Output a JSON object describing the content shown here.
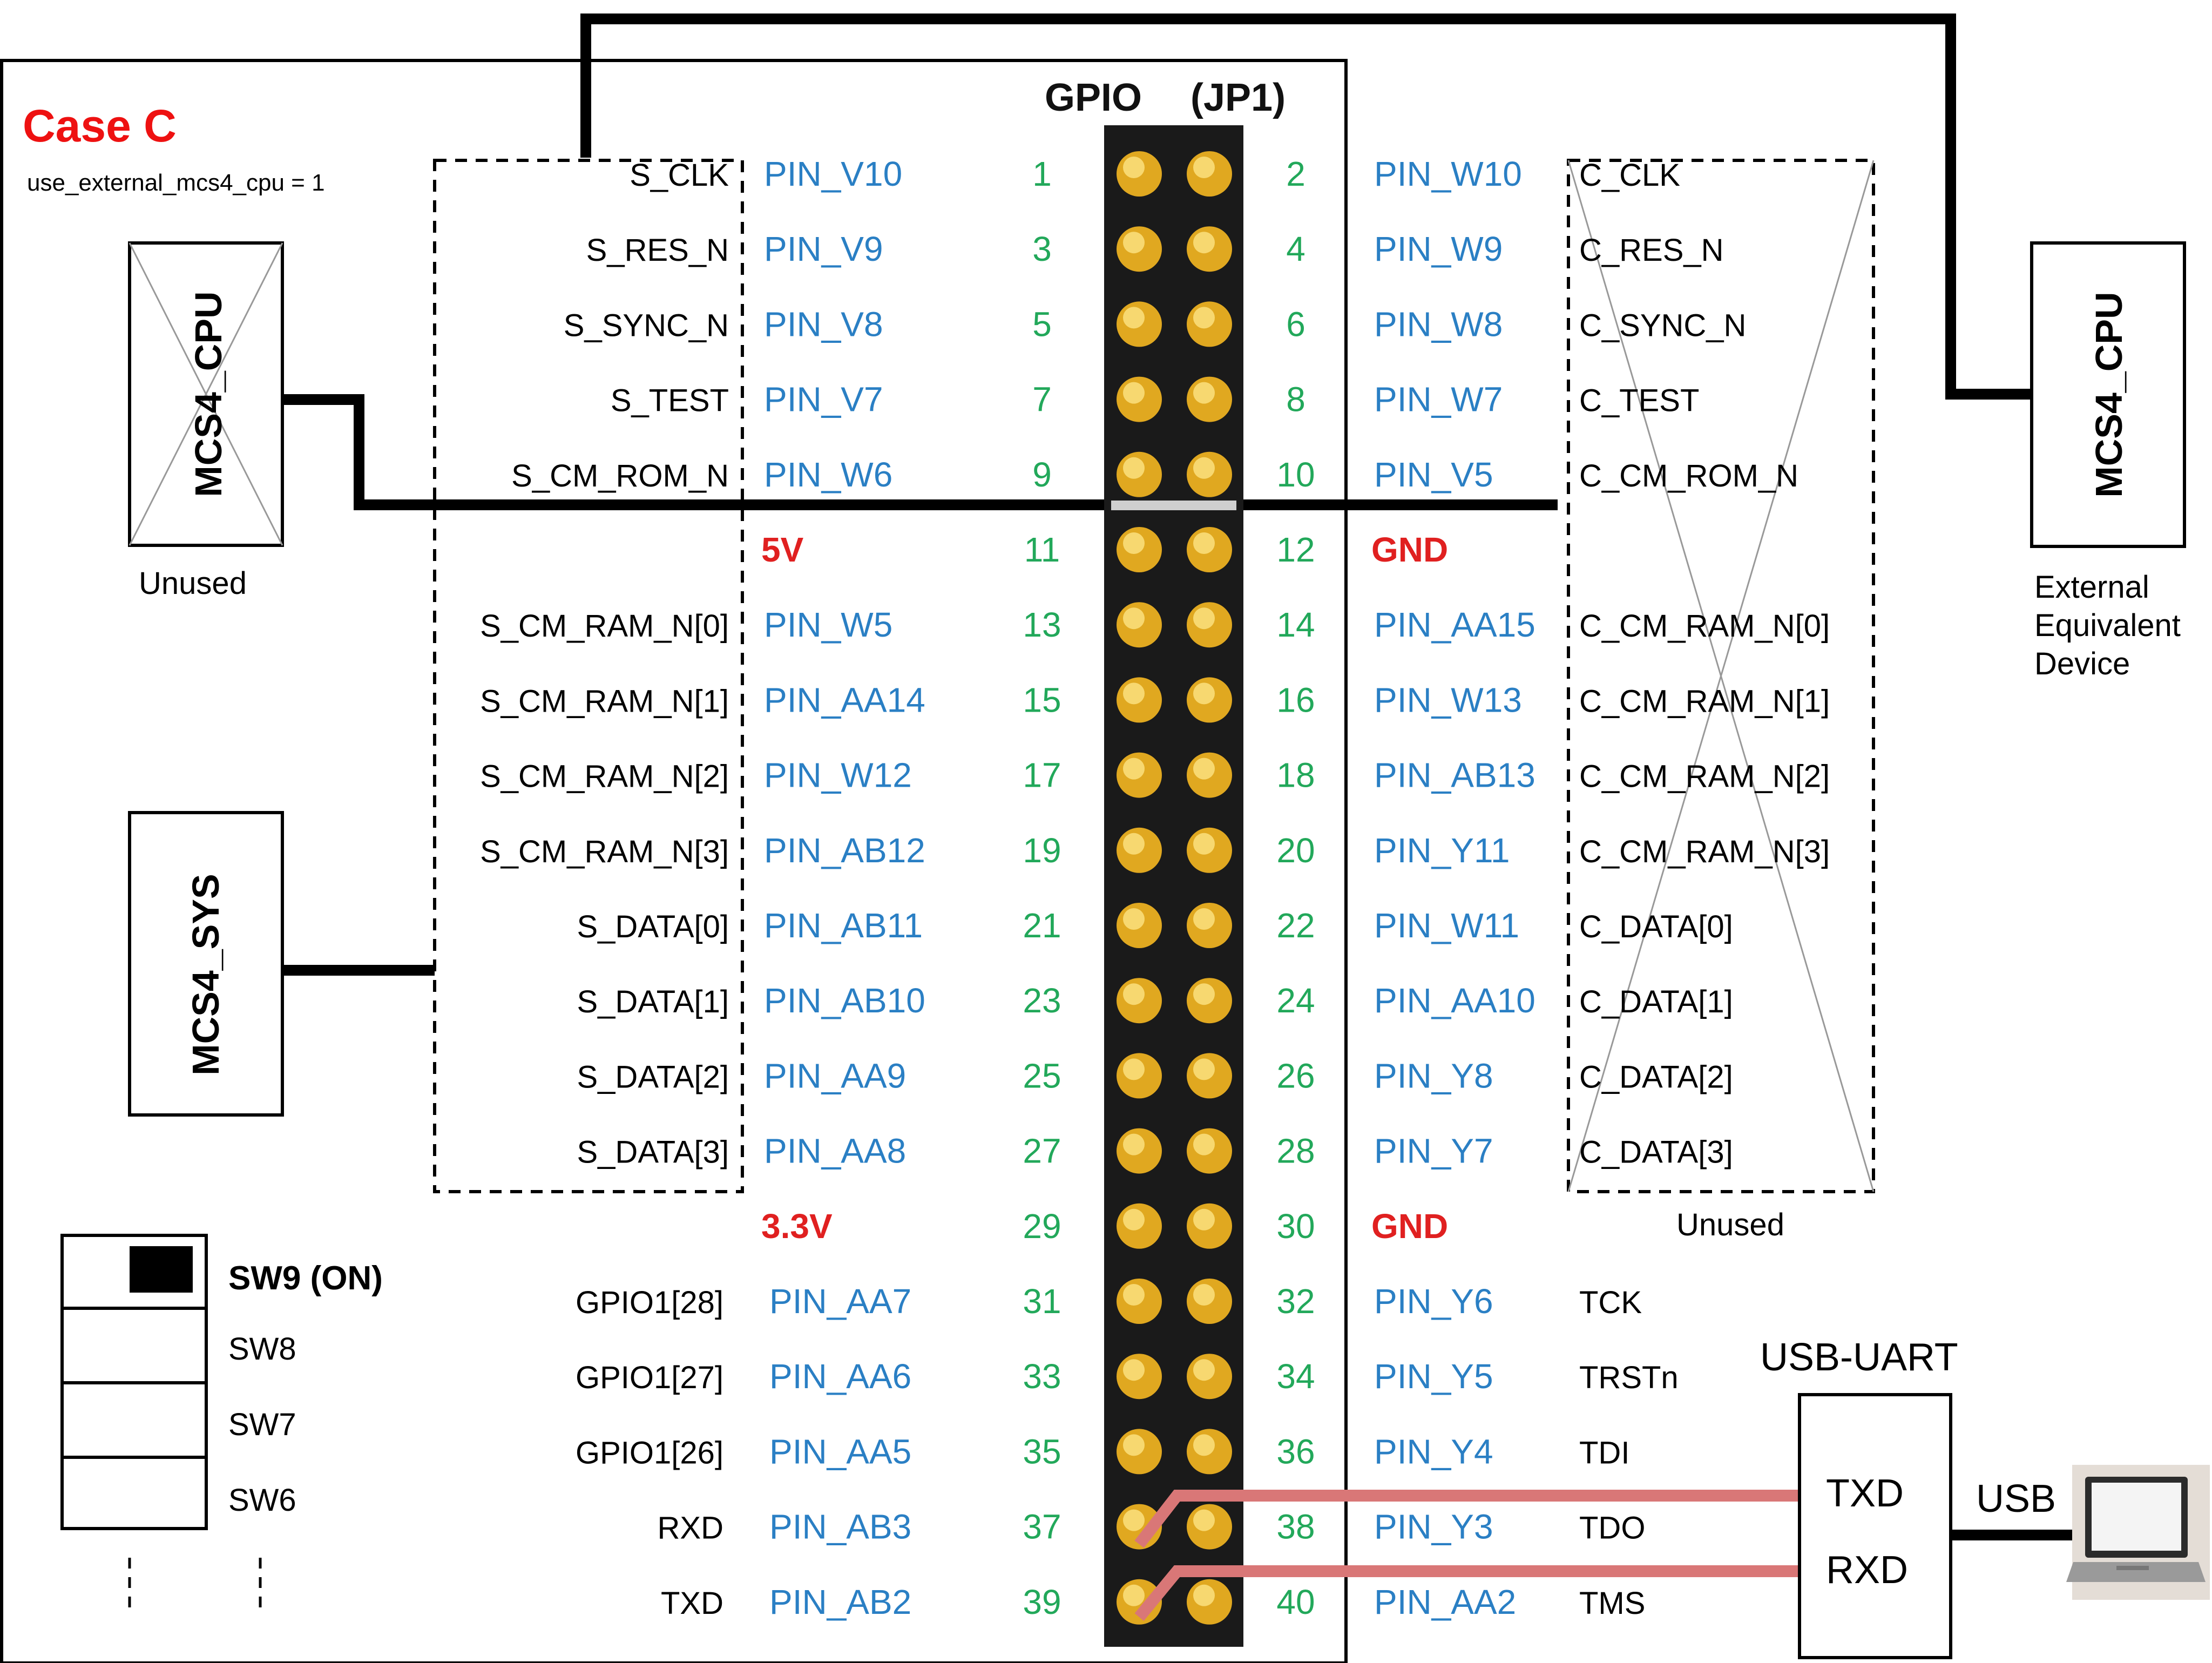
{
  "title": "Case C",
  "config_text": "use_external_mcs4_cpu = 1",
  "header": {
    "gpio": "GPIO",
    "jp": "(JP1)"
  },
  "left_cpu": {
    "label": "MCS4_CPU",
    "caption": "Unused"
  },
  "left_sys": {
    "label": "MCS4_SYS"
  },
  "right_cpu": {
    "label": "MCS4_CPU",
    "caption_lines": [
      "External",
      "Equivalent",
      "Device"
    ]
  },
  "right_box_caption": "Unused",
  "pins": [
    {
      "n": 1,
      "sig": "S_CLK",
      "pin": "PIN_V10"
    },
    {
      "n": 2,
      "sig": "C_CLK",
      "pin": "PIN_W10"
    },
    {
      "n": 3,
      "sig": "S_RES_N",
      "pin": "PIN_V9"
    },
    {
      "n": 4,
      "sig": "C_RES_N",
      "pin": "PIN_W9"
    },
    {
      "n": 5,
      "sig": "S_SYNC_N",
      "pin": "PIN_V8"
    },
    {
      "n": 6,
      "sig": "C_SYNC_N",
      "pin": "PIN_W8"
    },
    {
      "n": 7,
      "sig": "S_TEST",
      "pin": "PIN_V7"
    },
    {
      "n": 8,
      "sig": "C_TEST",
      "pin": "PIN_W7"
    },
    {
      "n": 9,
      "sig": "S_CM_ROM_N",
      "pin": "PIN_W6"
    },
    {
      "n": 10,
      "sig": "C_CM_ROM_N",
      "pin": "PIN_V5"
    },
    {
      "n": 11,
      "sig": "",
      "pin": "5V",
      "power": true
    },
    {
      "n": 12,
      "sig": "",
      "pin": "GND",
      "power": true
    },
    {
      "n": 13,
      "sig": "S_CM_RAM_N[0]",
      "pin": "PIN_W5"
    },
    {
      "n": 14,
      "sig": "C_CM_RAM_N[0]",
      "pin": "PIN_AA15"
    },
    {
      "n": 15,
      "sig": "S_CM_RAM_N[1]",
      "pin": "PIN_AA14"
    },
    {
      "n": 16,
      "sig": "C_CM_RAM_N[1]",
      "pin": "PIN_W13"
    },
    {
      "n": 17,
      "sig": "S_CM_RAM_N[2]",
      "pin": "PIN_W12"
    },
    {
      "n": 18,
      "sig": "C_CM_RAM_N[2]",
      "pin": "PIN_AB13"
    },
    {
      "n": 19,
      "sig": "S_CM_RAM_N[3]",
      "pin": "PIN_AB12"
    },
    {
      "n": 20,
      "sig": "C_CM_RAM_N[3]",
      "pin": "PIN_Y11"
    },
    {
      "n": 21,
      "sig": "S_DATA[0]",
      "pin": "PIN_AB11"
    },
    {
      "n": 22,
      "sig": "C_DATA[0]",
      "pin": "PIN_W11"
    },
    {
      "n": 23,
      "sig": "S_DATA[1]",
      "pin": "PIN_AB10"
    },
    {
      "n": 24,
      "sig": "C_DATA[1]",
      "pin": "PIN_AA10"
    },
    {
      "n": 25,
      "sig": "S_DATA[2]",
      "pin": "PIN_AA9"
    },
    {
      "n": 26,
      "sig": "C_DATA[2]",
      "pin": "PIN_Y8"
    },
    {
      "n": 27,
      "sig": "S_DATA[3]",
      "pin": "PIN_AA8"
    },
    {
      "n": 28,
      "sig": "C_DATA[3]",
      "pin": "PIN_Y7"
    },
    {
      "n": 29,
      "sig": "",
      "pin": "3.3V",
      "power": true
    },
    {
      "n": 30,
      "sig": "",
      "pin": "GND",
      "power": true
    },
    {
      "n": 31,
      "sig": "GPIO1[28]",
      "pin": "PIN_AA7"
    },
    {
      "n": 32,
      "sig": "TCK",
      "pin": "PIN_Y6"
    },
    {
      "n": 33,
      "sig": "GPIO1[27]",
      "pin": "PIN_AA6"
    },
    {
      "n": 34,
      "sig": "TRSTn",
      "pin": "PIN_Y5"
    },
    {
      "n": 35,
      "sig": "GPIO1[26]",
      "pin": "PIN_AA5"
    },
    {
      "n": 36,
      "sig": "TDI",
      "pin": "PIN_Y4"
    },
    {
      "n": 37,
      "sig": "RXD",
      "pin": "PIN_AB3"
    },
    {
      "n": 38,
      "sig": "TDO",
      "pin": "PIN_Y3"
    },
    {
      "n": 39,
      "sig": "TXD",
      "pin": "PIN_AB2"
    },
    {
      "n": 40,
      "sig": "TMS",
      "pin": "PIN_AA2"
    }
  ],
  "switches": [
    {
      "label": "SW9 (ON)",
      "on": true
    },
    {
      "label": "SW8",
      "on": false
    },
    {
      "label": "SW7",
      "on": false
    },
    {
      "label": "SW6",
      "on": false
    }
  ],
  "usb_uart": {
    "title": "USB-UART",
    "txd": "TXD",
    "rxd": "RXD",
    "usb": "USB"
  },
  "colors": {
    "title_red": "#ee1111",
    "pin_blue": "#2a7fc4",
    "pin_green": "#22a85a",
    "power_red": "#e02020",
    "uart_line": "#d97777",
    "header_black": "#1a1a1a",
    "pin_gold": "#e0a820"
  }
}
